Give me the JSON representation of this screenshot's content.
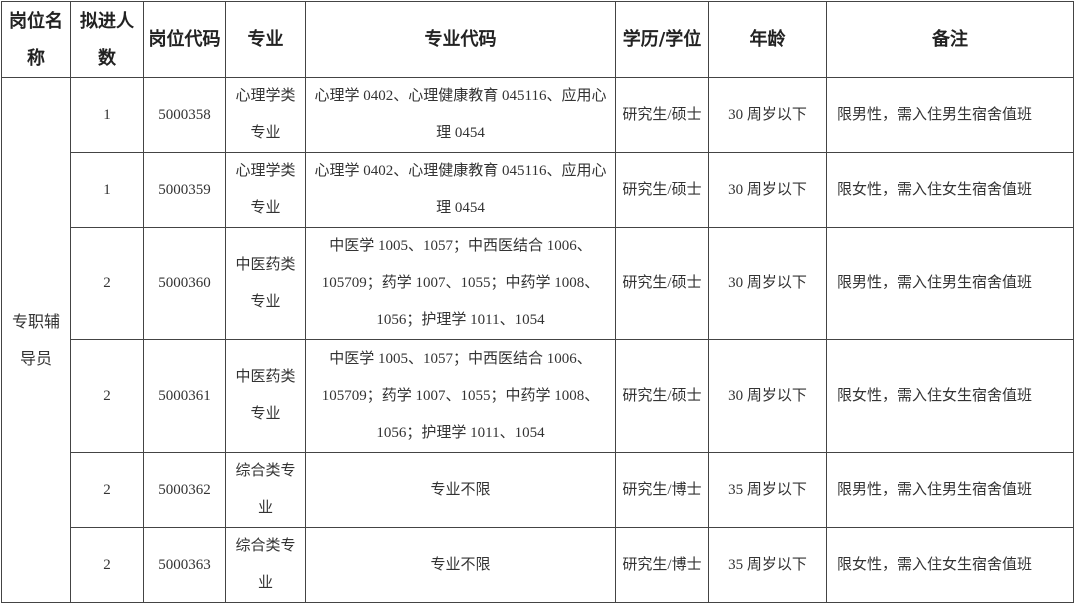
{
  "headers": [
    "岗位名称",
    "拟进人数",
    "岗位代码",
    "专业",
    "专业代码",
    "学历/学位",
    "年龄",
    "备注"
  ],
  "position_name": "专职辅导员",
  "rows": [
    {
      "count": "1",
      "code": "5000358",
      "major": "心理学类专业",
      "major_codes": "心理学 0402、心理健康教育 045116、应用心理 0454",
      "degree": "研究生/硕士",
      "age": "30 周岁以下",
      "remark": "限男性，需入住男生宿舍值班"
    },
    {
      "count": "1",
      "code": "5000359",
      "major": "心理学类专业",
      "major_codes": "心理学 0402、心理健康教育 045116、应用心理 0454",
      "degree": "研究生/硕士",
      "age": "30 周岁以下",
      "remark": "限女性，需入住女生宿舍值班"
    },
    {
      "count": "2",
      "code": "5000360",
      "major": "中医药类专业",
      "major_codes": "中医学 1005、1057；中西医结合 1006、105709；药学 1007、1055；中药学 1008、1056；护理学 1011、1054",
      "degree": "研究生/硕士",
      "age": "30 周岁以下",
      "remark": "限男性，需入住男生宿舍值班"
    },
    {
      "count": "2",
      "code": "5000361",
      "major": "中医药类专业",
      "major_codes": "中医学 1005、1057；中西医结合 1006、105709；药学 1007、1055；中药学 1008、1056；护理学 1011、1054",
      "degree": "研究生/硕士",
      "age": "30 周岁以下",
      "remark": "限女性，需入住女生宿舍值班"
    },
    {
      "count": "2",
      "code": "5000362",
      "major": "综合类专业",
      "major_codes": "专业不限",
      "degree": "研究生/博士",
      "age": "35 周岁以下",
      "remark": "限男性，需入住男生宿舍值班"
    },
    {
      "count": "2",
      "code": "5000363",
      "major": "综合类专业",
      "major_codes": "专业不限",
      "degree": "研究生/博士",
      "age": "35 周岁以下",
      "remark": "限女性，需入住女生宿舍值班"
    }
  ]
}
